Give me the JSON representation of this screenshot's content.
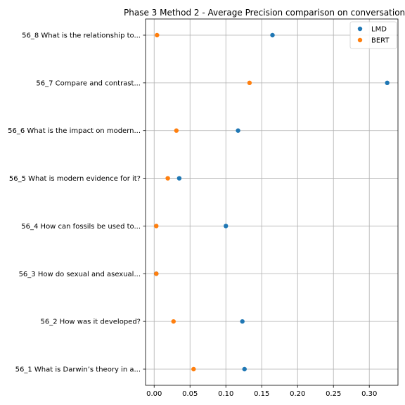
{
  "chart_data": {
    "type": "scatter",
    "title": "Phase 3 Method 2 - Average Precision comparison on conversation",
    "xlabel": "",
    "ylabel": "",
    "xlim": [
      -0.012,
      0.34
    ],
    "xticks": [
      "0.00",
      "0.05",
      "0.10",
      "0.15",
      "0.20",
      "0.25",
      "0.30"
    ],
    "categories": [
      "56_1 What is Darwin’s theory in a...",
      "56_2 How was it developed?",
      "56_3 How do sexual and asexual...",
      "56_4 How can fossils be used to...",
      "56_5 What is modern evidence for it?",
      "56_6 What is the impact on modern...",
      "56_7 Compare and contrast...",
      "56_8 What is the relationship to..."
    ],
    "series": [
      {
        "name": "LMD",
        "color": "#1f77b4",
        "values": [
          0.126,
          0.123,
          0.003,
          0.1,
          0.035,
          0.117,
          0.325,
          0.165
        ]
      },
      {
        "name": "BERT",
        "color": "#ff7f0e",
        "values": [
          0.055,
          0.027,
          0.003,
          0.003,
          0.019,
          0.031,
          0.133,
          0.004
        ]
      }
    ],
    "grid": true,
    "legend": "top-right"
  }
}
